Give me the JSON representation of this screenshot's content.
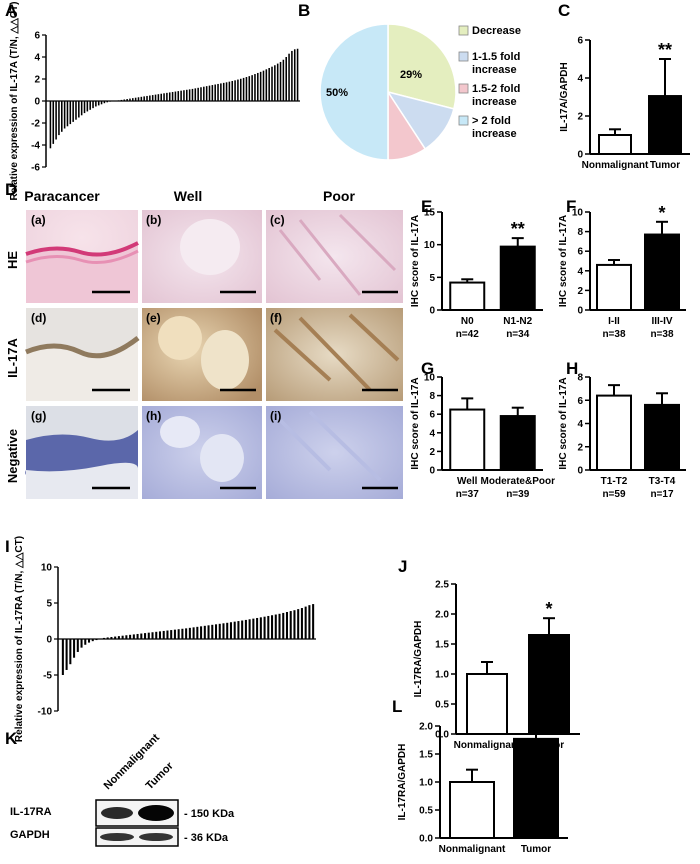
{
  "panel_labels": {
    "A": "A",
    "B": "B",
    "C": "C",
    "D": "D",
    "E": "E",
    "F": "F",
    "G": "G",
    "H": "H",
    "I": "I",
    "J": "J",
    "K": "K",
    "L": "L"
  },
  "chart_data": [
    {
      "id": "A",
      "type": "bar",
      "ylabel": "Relative expression of IL-17A (T/N, △△CT)",
      "ylim": [
        -6,
        6
      ],
      "yticks": [
        -6,
        -4,
        -2,
        0,
        2,
        4,
        6
      ],
      "series": [
        {
          "values": [
            -4.3,
            -3.9,
            -3.5,
            -3.1,
            -2.8,
            -2.5,
            -2.3,
            -2.1,
            -1.9,
            -1.7,
            -1.5,
            -1.3,
            -1.1,
            -0.95,
            -0.8,
            -0.65,
            -0.5,
            -0.4,
            -0.3,
            -0.2,
            -0.12,
            -0.06,
            0,
            0.03,
            0.06,
            0.1,
            0.14,
            0.18,
            0.22,
            0.26,
            0.3,
            0.34,
            0.38,
            0.42,
            0.46,
            0.5,
            0.54,
            0.58,
            0.62,
            0.66,
            0.7,
            0.74,
            0.78,
            0.82,
            0.86,
            0.9,
            0.94,
            0.98,
            1.02,
            1.06,
            1.1,
            1.15,
            1.2,
            1.25,
            1.3,
            1.35,
            1.4,
            1.45,
            1.5,
            1.55,
            1.6,
            1.65,
            1.7,
            1.76,
            1.82,
            1.88,
            1.95,
            2.02,
            2.1,
            2.18,
            2.26,
            2.35,
            2.45,
            2.55,
            2.65,
            2.76,
            2.88,
            3.0,
            3.12,
            3.25,
            3.4,
            3.55,
            3.75,
            4.0,
            4.3,
            4.55,
            4.7,
            4.75
          ]
        }
      ]
    },
    {
      "id": "B",
      "type": "pie",
      "slices": [
        {
          "label": "Decrease",
          "value": 29,
          "text": "29%",
          "color": "#e4eebf"
        },
        {
          "label": "1-1.5 fold increase",
          "value": 11.8,
          "text": "11.8%",
          "color": "#ccdcf0"
        },
        {
          "label": "1.5-2 fold increase",
          "value": 9.2,
          "text": "9.2%",
          "color": "#f3c7cd"
        },
        {
          "label": "> 2 fold increase",
          "value": 50,
          "text": "50%",
          "color": "#c7e8f7"
        }
      ]
    },
    {
      "id": "C",
      "type": "bar",
      "ylabel": "IL-17A/GAPDH",
      "ylim": [
        0,
        6
      ],
      "yticks": [
        0,
        2,
        4,
        6
      ],
      "categories": [
        "Nonmalignant",
        "Tumor"
      ],
      "values": [
        1.0,
        3.05
      ],
      "errors": [
        0.3,
        1.95
      ],
      "fills": [
        "#ffffff",
        "#000000"
      ],
      "sig": [
        "",
        "**"
      ]
    },
    {
      "id": "E",
      "type": "bar",
      "ylabel": "IHC score of IL-17A",
      "ylim": [
        0,
        15
      ],
      "yticks": [
        0,
        5,
        10,
        15
      ],
      "categories": [
        "N0",
        "N1-N2"
      ],
      "sublabels": [
        "n=42",
        "n=34"
      ],
      "values": [
        4.2,
        9.7
      ],
      "errors": [
        0.5,
        1.3
      ],
      "fills": [
        "#ffffff",
        "#000000"
      ],
      "sig": [
        "",
        "**"
      ]
    },
    {
      "id": "F",
      "type": "bar",
      "ylabel": "IHC score of IL-17A",
      "ylim": [
        0,
        10
      ],
      "yticks": [
        0,
        2,
        4,
        6,
        8,
        10
      ],
      "categories": [
        "I-II",
        "III-IV"
      ],
      "sublabels": [
        "n=38",
        "n=38"
      ],
      "values": [
        4.6,
        7.7
      ],
      "errors": [
        0.5,
        1.3
      ],
      "fills": [
        "#ffffff",
        "#000000"
      ],
      "sig": [
        "",
        "*"
      ]
    },
    {
      "id": "G",
      "type": "bar",
      "ylabel": "IHC score of IL-17A",
      "ylim": [
        0,
        10
      ],
      "yticks": [
        0,
        2,
        4,
        6,
        8,
        10
      ],
      "categories": [
        "Well",
        "Moderate&Poor"
      ],
      "sublabels": [
        "n=37",
        "n=39"
      ],
      "values": [
        6.5,
        5.8
      ],
      "errors": [
        1.2,
        0.9
      ],
      "fills": [
        "#ffffff",
        "#000000"
      ],
      "sig": [
        "",
        ""
      ]
    },
    {
      "id": "H",
      "type": "bar",
      "ylabel": "IHC score of IL-17A",
      "ylim": [
        0,
        8
      ],
      "yticks": [
        0,
        2,
        4,
        6,
        8
      ],
      "categories": [
        "T1-T2",
        "T3-T4"
      ],
      "sublabels": [
        "n=59",
        "n=17"
      ],
      "values": [
        6.4,
        5.6
      ],
      "errors": [
        0.9,
        1.0
      ],
      "fills": [
        "#ffffff",
        "#000000"
      ],
      "sig": [
        "",
        ""
      ]
    },
    {
      "id": "I",
      "type": "bar",
      "ylabel": "Relative expression of IL-17RA (T/N, △△CT)",
      "ylim": [
        -10,
        10
      ],
      "yticks": [
        -10,
        -5,
        0,
        5,
        10
      ],
      "series": [
        {
          "values": [
            -5.0,
            -4.3,
            -3.5,
            -2.6,
            -1.8,
            -1.2,
            -0.8,
            -0.5,
            -0.3,
            -0.15,
            0.05,
            0.15,
            0.22,
            0.28,
            0.34,
            0.4,
            0.46,
            0.52,
            0.58,
            0.64,
            0.7,
            0.76,
            0.82,
            0.88,
            0.94,
            1.0,
            1.06,
            1.12,
            1.18,
            1.24,
            1.3,
            1.36,
            1.42,
            1.48,
            1.55,
            1.62,
            1.69,
            1.76,
            1.83,
            1.9,
            1.97,
            2.04,
            2.11,
            2.18,
            2.25,
            2.33,
            2.41,
            2.49,
            2.57,
            2.65,
            2.74,
            2.83,
            2.92,
            3.01,
            3.1,
            3.2,
            3.3,
            3.4,
            3.5,
            3.62,
            3.75,
            3.88,
            4.0,
            4.15,
            4.3,
            4.5,
            4.7,
            4.85
          ]
        }
      ]
    },
    {
      "id": "J",
      "type": "bar",
      "ylabel": "IL-17RA/GAPDH",
      "ylim": [
        0,
        2.5
      ],
      "yticks": [
        0.0,
        0.5,
        1.0,
        1.5,
        2.0,
        2.5
      ],
      "categories": [
        "Nonmalignant",
        "Tumor"
      ],
      "values": [
        1.0,
        1.65
      ],
      "errors": [
        0.2,
        0.28
      ],
      "fills": [
        "#ffffff",
        "#000000"
      ],
      "sig": [
        "",
        "*"
      ]
    },
    {
      "id": "L",
      "type": "bar",
      "ylabel": "IL-17RA/GAPDH",
      "ylim": [
        0,
        2.0
      ],
      "yticks": [
        0.0,
        0.5,
        1.0,
        1.5,
        2.0
      ],
      "categories": [
        "Nonmalignant",
        "Tumor"
      ],
      "values": [
        1.0,
        1.77
      ],
      "errors": [
        0.22,
        0.13
      ],
      "fills": [
        "#ffffff",
        "#000000"
      ],
      "sig": [
        "",
        "**"
      ]
    }
  ],
  "histology": {
    "columns": [
      "Paracancer",
      "Well",
      "Poor"
    ],
    "rows": [
      "HE",
      "IL-17A",
      "Negative"
    ],
    "tiles": [
      "(a)",
      "(b)",
      "(c)",
      "(d)",
      "(e)",
      "(f)",
      "(g)",
      "(h)",
      "(i)"
    ]
  },
  "blot": {
    "lanes": [
      "Nonmalignant",
      "Tumor"
    ],
    "rows": [
      {
        "label": "IL-17RA",
        "size": "- 150 KDa"
      },
      {
        "label": "GAPDH",
        "size": "- 36 KDa"
      }
    ]
  }
}
